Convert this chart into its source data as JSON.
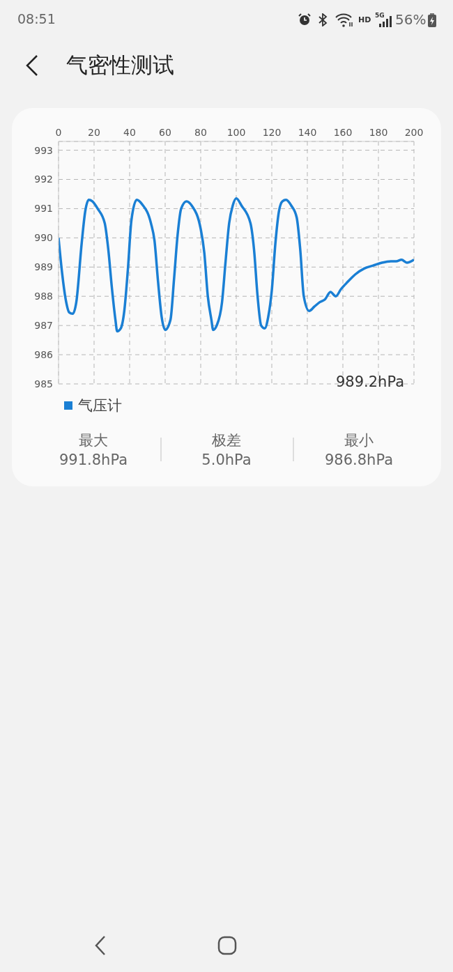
{
  "chart_data": {
    "type": "line",
    "title": "气密性测试",
    "annotations": [
      "08:51",
      "HD",
      "5G",
      "56%",
      "989.2hPa",
      "最大",
      "991.8hPa",
      "极差",
      "5.0hPa",
      "最小",
      "986.8hPa"
    ],
    "x": [
      0,
      2,
      4,
      6,
      8,
      10,
      13,
      15,
      17,
      19,
      22,
      26,
      28,
      30,
      32,
      33,
      35,
      37,
      39,
      41,
      44,
      47,
      52,
      54,
      56,
      58,
      60,
      63,
      65,
      67,
      69,
      72,
      75,
      80,
      82,
      84,
      86,
      87,
      89,
      92,
      94,
      96,
      98,
      100,
      103,
      108,
      110,
      112,
      114,
      116,
      118,
      120,
      122,
      124,
      126,
      128,
      131,
      134,
      136,
      138,
      141,
      144,
      147,
      150,
      153,
      156,
      159,
      162,
      167,
      172,
      177,
      182,
      187,
      190,
      193,
      196,
      200
    ],
    "series": [
      {
        "name": "气压计",
        "color": "#1a7fd4",
        "values": [
          990.0,
          988.8,
          987.9,
          987.45,
          987.4,
          987.8,
          989.8,
          990.9,
          991.3,
          991.25,
          991.0,
          990.5,
          989.6,
          988.3,
          987.2,
          986.8,
          986.9,
          987.5,
          988.9,
          990.6,
          991.3,
          991.15,
          990.5,
          989.9,
          988.5,
          987.3,
          986.85,
          987.2,
          988.6,
          990.1,
          991.0,
          991.25,
          991.1,
          990.3,
          989.5,
          988.0,
          987.2,
          986.85,
          987.0,
          987.8,
          989.2,
          990.5,
          991.1,
          991.35,
          991.1,
          990.5,
          989.6,
          988.0,
          987.0,
          986.9,
          987.3,
          988.2,
          989.8,
          990.9,
          991.25,
          991.3,
          991.1,
          990.7,
          989.6,
          988.0,
          987.5,
          987.65,
          987.8,
          987.9,
          988.15,
          988.0,
          988.25,
          988.45,
          988.75,
          988.95,
          989.05,
          989.15,
          989.2,
          989.2,
          989.25,
          989.15,
          989.25
        ]
      }
    ],
    "xlim": [
      0,
      200
    ],
    "xticks": [
      0,
      20,
      40,
      60,
      80,
      100,
      120,
      140,
      160,
      180,
      200
    ],
    "ylim": [
      985,
      993.3
    ],
    "yticks": [
      985,
      986,
      987,
      988,
      989,
      990,
      991,
      992,
      993
    ],
    "grid": true,
    "legend": "bottom left",
    "marker": "none",
    "line_style": "solid"
  }
}
